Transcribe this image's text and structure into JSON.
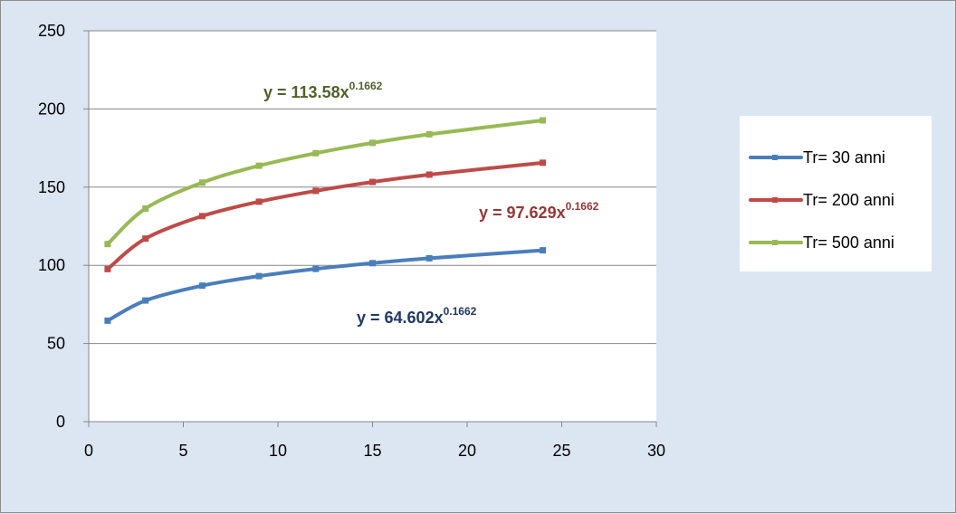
{
  "chart_data": {
    "type": "line",
    "title": "",
    "xlabel": "",
    "ylabel": "",
    "xlim": [
      0,
      30
    ],
    "ylim": [
      0,
      250
    ],
    "x_ticks": [
      "0",
      "5",
      "10",
      "15",
      "20",
      "25",
      "30"
    ],
    "y_ticks": [
      "0",
      "50",
      "100",
      "150",
      "200",
      "250"
    ],
    "grid": "horizontal major gridlines",
    "legend_position": "right",
    "x": [
      1,
      3,
      6,
      9,
      12,
      15,
      18,
      24
    ],
    "series": [
      {
        "name": "Tr= 30 anni",
        "color": "#4a7ebb",
        "values": [
          64.6,
          77.5,
          87.0,
          93.1,
          97.7,
          101.4,
          104.5,
          109.6
        ]
      },
      {
        "name": "Tr= 200 anni",
        "color": "#be4b48",
        "values": [
          97.6,
          117.1,
          131.5,
          140.7,
          147.6,
          153.3,
          158.0,
          165.6
        ]
      },
      {
        "name": "Tr= 500 anni",
        "color": "#98b954",
        "values": [
          113.6,
          136.3,
          152.9,
          163.7,
          171.7,
          178.3,
          183.8,
          192.7
        ]
      }
    ],
    "annotations": [
      {
        "text": "y = 113.58x",
        "sup": "0.1662",
        "color": "#4f6228"
      },
      {
        "text": "y = 97.629x",
        "sup": "0.1662",
        "color": "#953735"
      },
      {
        "text": "y = 64.602x",
        "sup": "0.1662",
        "color": "#1f3864"
      }
    ]
  }
}
